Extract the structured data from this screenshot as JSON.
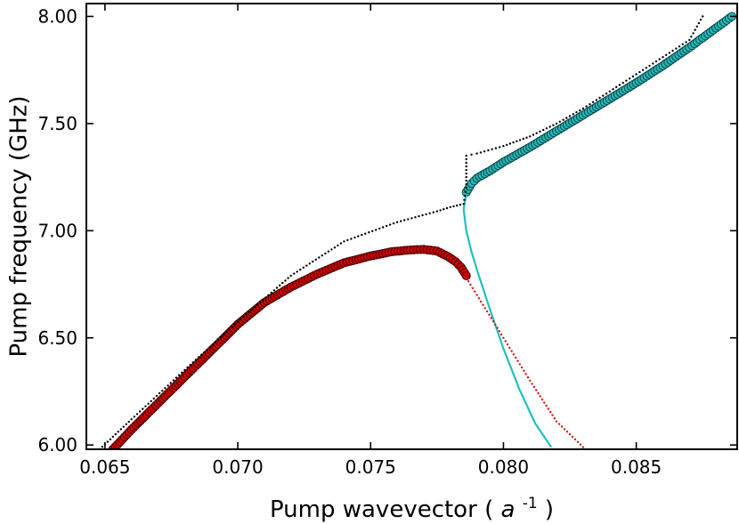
{
  "chart_data": {
    "type": "scatter",
    "xlabel": "Pump wavevector",
    "xlabel_unit_base": "a",
    "xlabel_unit_exp": "-1",
    "ylabel": "Pump frequency (GHz)",
    "xlim": [
      0.0643,
      0.0888
    ],
    "ylim": [
      5.98,
      8.06
    ],
    "xticks": [
      0.065,
      0.07,
      0.075,
      0.08,
      0.085
    ],
    "xtick_labels": [
      "0.065",
      "0.070",
      "0.075",
      "0.080",
      "0.085"
    ],
    "yticks": [
      6.0,
      6.5,
      7.0,
      7.5,
      8.0
    ],
    "ytick_labels": [
      "6.00",
      "6.50",
      "7.00",
      "7.50",
      "8.00"
    ],
    "grid": false,
    "series": [
      {
        "style": "circles",
        "color": "#cc0000",
        "edge": "#3a0000",
        "x": [
          0.0653,
          0.066,
          0.067,
          0.068,
          0.069,
          0.07,
          0.071,
          0.072,
          0.073,
          0.074,
          0.075,
          0.0758,
          0.0765,
          0.077,
          0.0775,
          0.0779,
          0.0782,
          0.0784,
          0.0786
        ],
        "y": [
          5.98,
          6.072,
          6.195,
          6.318,
          6.44,
          6.563,
          6.665,
          6.737,
          6.798,
          6.85,
          6.882,
          6.902,
          6.91,
          6.913,
          6.905,
          6.88,
          6.855,
          6.83,
          6.79
        ]
      },
      {
        "style": "circles",
        "color": "#20b8b8",
        "edge": "#0a3a3a",
        "x": [
          0.0786,
          0.0788,
          0.079,
          0.0795,
          0.08,
          0.081,
          0.082,
          0.083,
          0.084,
          0.085,
          0.086,
          0.087,
          0.0886
        ],
        "y": [
          7.18,
          7.22,
          7.245,
          7.28,
          7.32,
          7.39,
          7.465,
          7.54,
          7.615,
          7.69,
          7.77,
          7.855,
          8.0
        ]
      },
      {
        "style": "solid",
        "color": "#20c0c0",
        "x": [
          0.0786,
          0.0785,
          0.0786,
          0.0788,
          0.0791,
          0.0795,
          0.08,
          0.0806,
          0.0812,
          0.0818
        ],
        "y": [
          7.17,
          7.1,
          7.0,
          6.9,
          6.78,
          6.63,
          6.45,
          6.26,
          6.1,
          5.99
        ]
      },
      {
        "style": "dotted",
        "color": "#dd1111",
        "x": [
          0.0786,
          0.079,
          0.08,
          0.081,
          0.082,
          0.083
        ],
        "y": [
          6.78,
          6.7,
          6.5,
          6.3,
          6.11,
          5.99
        ]
      },
      {
        "style": "dotted",
        "color": "#000000",
        "x": [
          0.0648,
          0.066,
          0.068,
          0.07,
          0.072,
          0.074,
          0.076,
          0.0775,
          0.078,
          0.0785,
          0.0786,
          0.0786,
          0.0788,
          0.079,
          0.08,
          0.081,
          0.082,
          0.083,
          0.084,
          0.085,
          0.086,
          0.087,
          0.0875
        ],
        "y": [
          5.98,
          6.12,
          6.35,
          6.575,
          6.79,
          6.95,
          7.04,
          7.09,
          7.11,
          7.125,
          7.2,
          7.35,
          7.355,
          7.36,
          7.395,
          7.44,
          7.5,
          7.57,
          7.65,
          7.73,
          7.81,
          7.89,
          8.0
        ]
      }
    ]
  }
}
